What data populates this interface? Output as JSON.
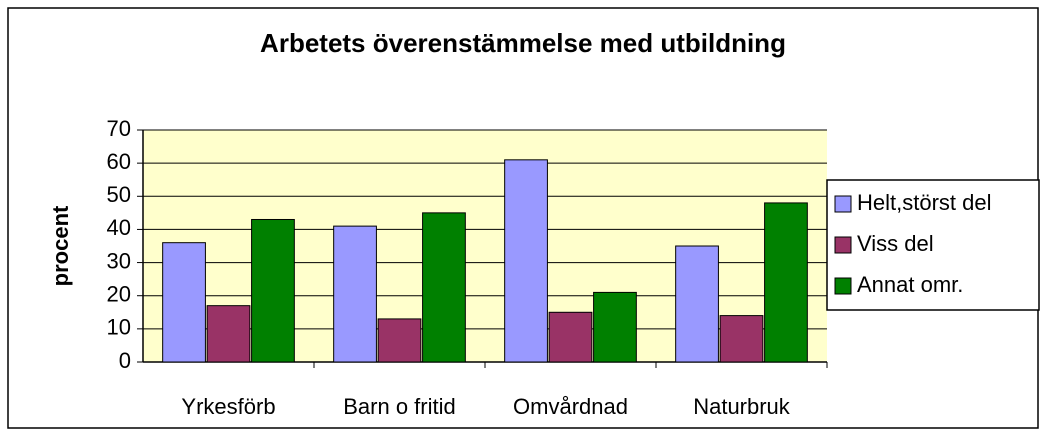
{
  "chart_data": {
    "type": "bar",
    "title": "Arbetets överenstämmelse med utbildning",
    "y_label": "procent",
    "categories": [
      "Yrkesförb",
      "Barn o fritid",
      "Omvårdnad",
      "Naturbruk"
    ],
    "series": [
      {
        "name": "Helt,störst del",
        "color": "#9999ff",
        "values": [
          36,
          41,
          61,
          35
        ]
      },
      {
        "name": "Viss del",
        "color": "#993366",
        "values": [
          17,
          13,
          15,
          14
        ]
      },
      {
        "name": "Annat omr.",
        "color": "#008000",
        "values": [
          43,
          45,
          21,
          48
        ]
      }
    ],
    "ylim": [
      0,
      70
    ],
    "yticks": [
      0,
      10,
      20,
      30,
      40,
      50,
      60,
      70
    ],
    "grid": true,
    "plot_background": "#ffffcc",
    "legend": "right"
  }
}
